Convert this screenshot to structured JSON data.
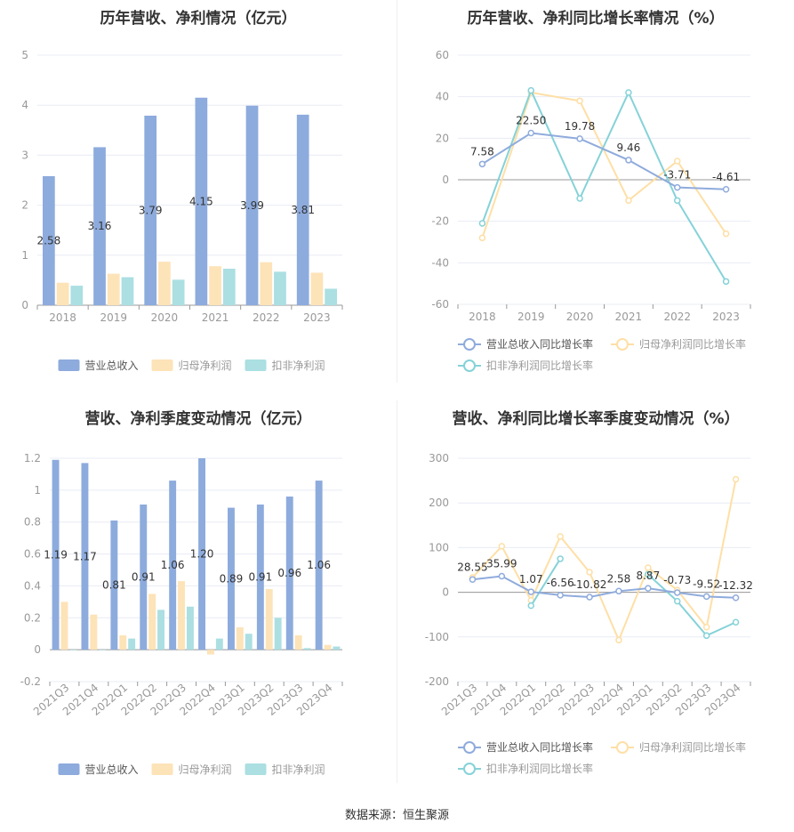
{
  "footer": "数据来源：恒生聚源",
  "colors": {
    "blue": "#8dabdd",
    "peach": "#fde3b8",
    "teal": "#abdfe2",
    "blue_line": "#8fabdc",
    "peach_line": "#fedfa6",
    "teal_line": "#85d2d8",
    "axis_text": "#999999",
    "grid": "#e8ecf4",
    "value_label": "#333333"
  },
  "chart_data": [
    {
      "type": "bar",
      "title": "历年营收、净利情况（亿元）",
      "categories": [
        "2018",
        "2019",
        "2020",
        "2021",
        "2022",
        "2023"
      ],
      "ylim": [
        0,
        5
      ],
      "yticks": [
        "0",
        "1",
        "2",
        "3",
        "4",
        "5"
      ],
      "series": [
        {
          "name": "营业总收入",
          "values": [
            2.58,
            3.16,
            3.79,
            4.15,
            3.99,
            3.81
          ],
          "labels": [
            "2.58",
            "3.16",
            "3.79",
            "4.15",
            "3.99",
            "3.81"
          ]
        },
        {
          "name": "归母净利润",
          "values": [
            0.45,
            0.63,
            0.87,
            0.78,
            0.86,
            0.65
          ]
        },
        {
          "name": "扣非净利润",
          "values": [
            0.39,
            0.56,
            0.51,
            0.73,
            0.67,
            0.33
          ]
        }
      ],
      "legend": "bottom",
      "grid": true
    },
    {
      "type": "line",
      "title": "历年营收、净利同比增长率情况（%）",
      "categories": [
        "2018",
        "2019",
        "2020",
        "2021",
        "2022",
        "2023"
      ],
      "ylim": [
        -60,
        60
      ],
      "yticks": [
        "-60",
        "-40",
        "-20",
        "0",
        "20",
        "40",
        "60"
      ],
      "series": [
        {
          "name": "营业总收入同比增长率",
          "values": [
            7.58,
            22.5,
            19.78,
            9.46,
            -3.71,
            -4.61
          ],
          "labels": [
            "7.58",
            "22.50",
            "19.78",
            "9.46",
            "-3.71",
            "-4.61"
          ]
        },
        {
          "name": "归母净利润同比增长率",
          "values": [
            -28,
            42,
            38,
            -10,
            9,
            -26
          ]
        },
        {
          "name": "扣非净利润同比增长率",
          "values": [
            -21,
            43,
            -9,
            42,
            -10,
            -49
          ]
        }
      ],
      "legend": "bottom",
      "grid": true
    },
    {
      "type": "bar",
      "title": "营收、净利季度变动情况（亿元）",
      "categories": [
        "2021Q3",
        "2021Q4",
        "2022Q1",
        "2022Q2",
        "2022Q3",
        "2022Q4",
        "2023Q1",
        "2023Q2",
        "2023Q3",
        "2023Q4"
      ],
      "ylim": [
        -0.2,
        1.2
      ],
      "yticks": [
        "-0.2",
        "0",
        "0.2",
        "0.4",
        "0.6",
        "0.8",
        "1",
        "1.2"
      ],
      "series": [
        {
          "name": "营业总收入",
          "values": [
            1.19,
            1.17,
            0.81,
            0.91,
            1.06,
            1.2,
            0.89,
            0.91,
            0.96,
            1.06
          ],
          "labels": [
            "1.19",
            "1.17",
            "0.81",
            "0.91",
            "1.06",
            "1.20",
            "0.89",
            "0.91",
            "0.96",
            "1.06"
          ]
        },
        {
          "name": "归母净利润",
          "values": [
            0.3,
            0.22,
            0.09,
            0.35,
            0.43,
            -0.03,
            0.14,
            0.38,
            0.09,
            0.03
          ]
        },
        {
          "name": "扣非净利润",
          "values": [
            0.0,
            0.0,
            0.07,
            0.25,
            0.27,
            0.07,
            0.1,
            0.2,
            0.01,
            0.02
          ]
        }
      ],
      "legend": "bottom",
      "grid": true
    },
    {
      "type": "line",
      "title": "营收、净利同比增长率季度变动情况（%）",
      "categories": [
        "2021Q3",
        "2021Q4",
        "2022Q1",
        "2022Q2",
        "2022Q3",
        "2022Q4",
        "2023Q1",
        "2023Q2",
        "2023Q3",
        "2023Q4"
      ],
      "ylim": [
        -200,
        300
      ],
      "yticks": [
        "-200",
        "-100",
        "0",
        "100",
        "200",
        "300"
      ],
      "series": [
        {
          "name": "营业总收入同比增长率",
          "values": [
            28.55,
            35.99,
            1.07,
            -6.56,
            -10.82,
            2.58,
            8.87,
            -0.73,
            -9.52,
            -12.32
          ],
          "labels": [
            "28.55",
            "35.99",
            "1.07",
            "-6.56",
            "-10.82",
            "2.58",
            "8.87",
            "-0.73",
            "-9.52",
            "-12.32"
          ]
        },
        {
          "name": "归母净利润同比增长率",
          "values": [
            33,
            103,
            -18,
            125,
            45,
            -107,
            55,
            5,
            -78,
            253
          ]
        },
        {
          "name": "扣非净利润同比增长率",
          "values": [
            null,
            null,
            -30,
            75,
            null,
            null,
            40,
            -20,
            -97,
            -67
          ]
        }
      ],
      "legend": "bottom",
      "grid": true
    }
  ]
}
